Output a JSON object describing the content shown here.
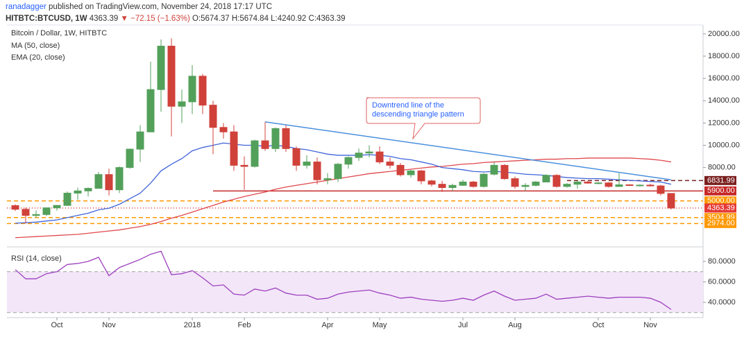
{
  "header": {
    "author": "ranadagger",
    "published": "published on TradingView.com, November 24, 2018 17:17 UTC",
    "symbol": "HITBTC:BTCUSD, 1W",
    "last": "4363.39",
    "change": "▼ −72.15 (−1.63%)",
    "ohlc": "O:5674.37 H:5674.84 L:4240.92 C:4363.39"
  },
  "chart_data": [
    {
      "type": "candlestick",
      "title": "Bitcoin / Dollar, 1W, HITBTC",
      "categories": [
        null,
        null,
        null,
        null,
        "Oct",
        null,
        null,
        null,
        null,
        "Nov",
        null,
        null,
        null,
        null,
        null,
        null,
        null,
        "2018",
        null,
        null,
        null,
        null,
        "Feb",
        null,
        null,
        null,
        null,
        null,
        null,
        null,
        "Apr",
        null,
        null,
        null,
        null,
        "May",
        null,
        null,
        null,
        null,
        null,
        null,
        null,
        "Jul",
        null,
        null,
        null,
        null,
        "Aug",
        null,
        null,
        null,
        null,
        null,
        null,
        null,
        "Oct",
        null,
        null,
        null,
        null,
        "Nov",
        null,
        null
      ],
      "open": [
        4580,
        4250,
        3700,
        3780,
        4380,
        4600,
        5700,
        5900,
        6130,
        7370,
        6000,
        8000,
        9650,
        11200,
        15000,
        18900,
        13500,
        13900,
        16200,
        13600,
        11600,
        11200,
        8200,
        8100,
        10400,
        9700,
        11500,
        9700,
        8200,
        8500,
        6900,
        7000,
        8300,
        8900,
        9300,
        9400,
        8500,
        8200,
        7350,
        7700,
        6800,
        6500,
        6200,
        6400,
        6700,
        6300,
        7400,
        8200,
        7000,
        6300,
        6400,
        6700,
        7300,
        6300,
        6500,
        6700,
        6600,
        6620,
        6300,
        6450,
        6400,
        6420,
        6350,
        5674.37
      ],
      "high": [
        4700,
        4400,
        4150,
        4400,
        4600,
        5850,
        6200,
        6200,
        7600,
        7900,
        8100,
        9700,
        11800,
        17500,
        19500,
        19600,
        15000,
        17200,
        16400,
        14000,
        12000,
        11800,
        9000,
        10500,
        12100,
        11600,
        11800,
        9900,
        9100,
        8900,
        7500,
        8400,
        9000,
        9700,
        10000,
        9900,
        8900,
        8400,
        7800,
        7800,
        6900,
        6800,
        6550,
        6900,
        6800,
        7500,
        8500,
        8300,
        7200,
        6600,
        6800,
        7400,
        7400,
        6600,
        6800,
        6800,
        6700,
        6700,
        7500,
        6500,
        6500,
        6550,
        6450,
        5674.84
      ],
      "low": [
        4100,
        2974,
        3500,
        3650,
        4130,
        4550,
        5100,
        5400,
        6100,
        5500,
        5700,
        7900,
        8500,
        11200,
        13000,
        10800,
        12000,
        12800,
        12800,
        9200,
        10600,
        7700,
        6000,
        8000,
        9500,
        9400,
        9400,
        7700,
        7900,
        6500,
        6500,
        6700,
        7900,
        8600,
        8900,
        8300,
        7900,
        7200,
        7100,
        6500,
        6300,
        5800,
        5900,
        6350,
        6200,
        6200,
        7300,
        6900,
        6100,
        5900,
        6300,
        6700,
        6200,
        6200,
        6100,
        6550,
        6500,
        6200,
        6300,
        6350,
        6300,
        6300,
        5500,
        4240.92
      ],
      "close": [
        4250,
        3700,
        3780,
        4380,
        4600,
        5700,
        5900,
        6130,
        7370,
        6000,
        8000,
        9650,
        11200,
        15000,
        18900,
        13500,
        13900,
        16200,
        13600,
        11600,
        11200,
        8200,
        8100,
        10400,
        9700,
        11500,
        9700,
        8200,
        8500,
        6900,
        7000,
        8300,
        8900,
        9300,
        9400,
        8500,
        8200,
        7350,
        7700,
        6800,
        6500,
        6200,
        6400,
        6700,
        6300,
        7400,
        8200,
        7000,
        6300,
        6400,
        6700,
        7300,
        6300,
        6500,
        6700,
        6600,
        6620,
        6300,
        6450,
        6400,
        6420,
        6350,
        5674.37,
        4363.39
      ],
      "up_color": "#53a05a",
      "down_color": "#d0413a",
      "ylim": [
        1500,
        20800
      ],
      "yticks": [
        {
          "value": 8000,
          "label": "8000.00"
        },
        {
          "value": 10000,
          "label": "10000.00"
        },
        {
          "value": 12000,
          "label": "12000.00"
        },
        {
          "value": 14000,
          "label": "14000.00"
        },
        {
          "value": 16000,
          "label": "16000.00"
        },
        {
          "value": 18000,
          "label": "18000.00"
        },
        {
          "value": 20000,
          "label": "20000.00"
        }
      ],
      "series": [
        {
          "name": "MA (50, close)",
          "color": "#e0474c",
          "values": [
            1700,
            1750,
            1800,
            1850,
            1900,
            1950,
            2000,
            2100,
            2200,
            2300,
            2400,
            2550,
            2700,
            2900,
            3150,
            3450,
            3700,
            4000,
            4300,
            4600,
            4900,
            5150,
            5400,
            5600,
            5800,
            6050,
            6250,
            6400,
            6550,
            6700,
            6850,
            7000,
            7150,
            7300,
            7450,
            7550,
            7650,
            7750,
            7850,
            7950,
            8050,
            8100,
            8200,
            8300,
            8350,
            8450,
            8500,
            8550,
            8600,
            8650,
            8700,
            8750,
            8750,
            8800,
            8800,
            8850,
            8850,
            8850,
            8850,
            8850,
            8800,
            8750,
            8650,
            8500
          ]
        },
        {
          "name": "EMA (20, close)",
          "color": "#3f64d9",
          "values": [
            3000,
            3050,
            3100,
            3200,
            3300,
            3500,
            3700,
            3900,
            4200,
            4350,
            4700,
            5200,
            5700,
            6600,
            7700,
            8300,
            8800,
            9500,
            9800,
            10000,
            10200,
            10100,
            10000,
            10000,
            9900,
            10000,
            9900,
            9700,
            9600,
            9400,
            9200,
            9100,
            9100,
            9100,
            9150,
            9100,
            9000,
            8800,
            8700,
            8500,
            8300,
            8000,
            7900,
            7800,
            7650,
            7600,
            7650,
            7600,
            7500,
            7400,
            7350,
            7300,
            7200,
            7100,
            7050,
            7000,
            7000,
            6950,
            6900,
            6850,
            6800,
            6750,
            6700,
            6500
          ]
        }
      ],
      "lines": [
        {
          "value": 6831.99,
          "label": "6831.99",
          "color": "#7a1f1f",
          "dash": "6 4",
          "x": [
            53,
            63
          ]
        },
        {
          "value": 5900,
          "label": "5900.00",
          "color": "#c62828",
          "dash": "none",
          "x": [
            19,
            63
          ]
        },
        {
          "value": 5000,
          "label": "5000.00",
          "color": "#ff9800",
          "dash": "6 4",
          "x": [
            0,
            63
          ]
        },
        {
          "value": 4363.39,
          "label": "4363.39",
          "color": "#e53935",
          "dash": "1 3",
          "x": [
            0,
            63
          ]
        },
        {
          "value": 3504.99,
          "label": "3504.99",
          "color": "#ff9800",
          "dash": "6 4",
          "x": [
            0,
            63
          ]
        },
        {
          "value": 2974,
          "label": "2974.00",
          "color": "#ff9800",
          "dash": "6 4",
          "x": [
            0,
            63
          ]
        }
      ],
      "trendline": {
        "x": [
          24,
          63
        ],
        "values": [
          12100,
          6900
        ],
        "color": "#4a8fdc"
      },
      "annotation": [
        "Downtrend line of the",
        "descending triangle pattern"
      ]
    },
    {
      "type": "line",
      "title": "RSI (14, close)",
      "color": "#9c3fbf",
      "values": [
        72,
        63,
        63,
        68,
        70,
        77,
        78,
        80,
        84,
        66,
        74,
        78,
        82,
        87,
        90,
        67,
        68,
        71,
        64,
        56,
        57,
        48,
        47,
        53,
        51,
        54,
        49,
        47,
        47,
        43,
        44,
        48,
        50,
        51,
        52,
        49,
        47,
        44,
        45,
        43,
        42,
        41,
        42,
        44,
        42,
        47,
        51,
        46,
        42,
        43,
        44,
        48,
        43,
        44,
        45,
        46,
        45,
        44,
        45,
        45,
        45,
        44,
        40,
        33
      ],
      "ylim": [
        26.4,
        92.9
      ],
      "yticks": [
        {
          "value": 40,
          "label": "40.0000"
        },
        {
          "value": 60,
          "label": "60.0000"
        },
        {
          "value": 80,
          "label": "80.0000"
        }
      ],
      "bands": [
        30,
        70
      ],
      "band_color": "#f3e6f8"
    }
  ]
}
